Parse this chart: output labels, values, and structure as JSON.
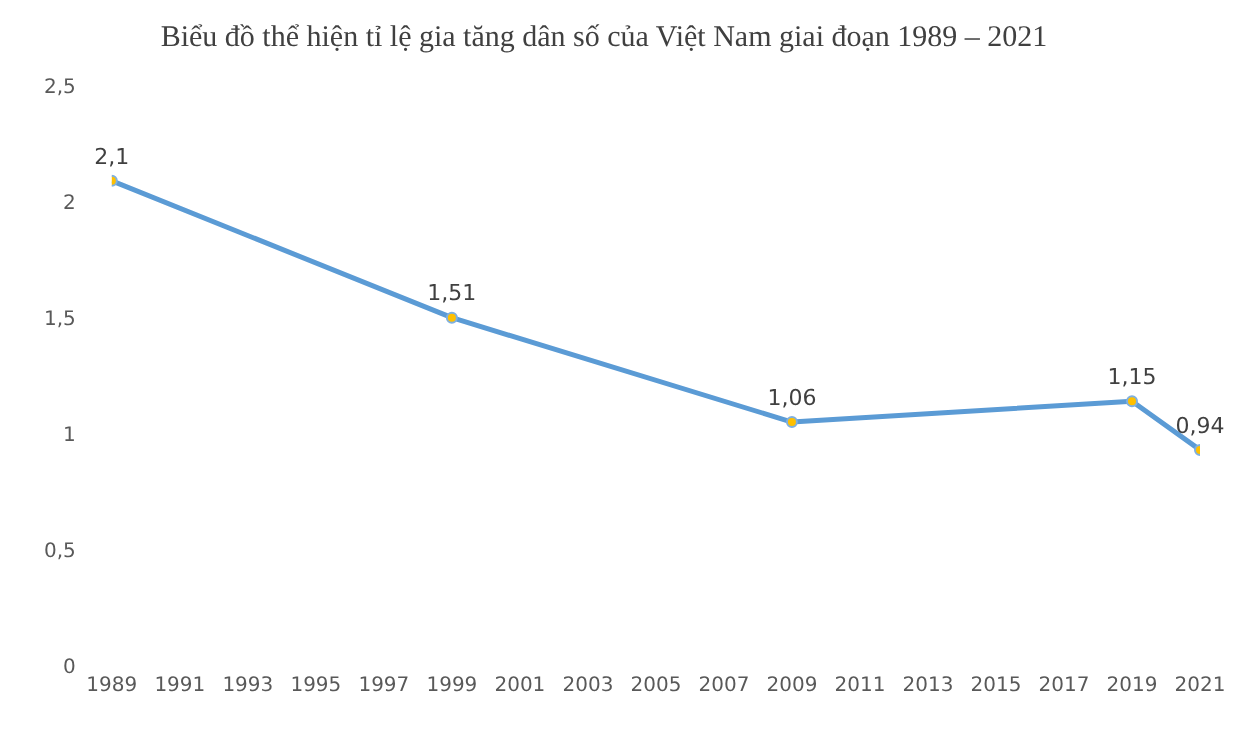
{
  "chart_data": {
    "type": "line",
    "title": "Biểu đồ thể hiện tỉ lệ gia tăng dân số của Việt Nam giai đoạn 1989 – 2021",
    "x": [
      1989,
      1999,
      2009,
      2019,
      2021
    ],
    "series": [
      {
        "color": "#5b9bd5",
        "values": [
          2.1,
          1.51,
          1.06,
          1.15,
          0.94
        ],
        "value_labels": [
          "2,1",
          "1,51",
          "1,06",
          "1,15",
          "0,94"
        ]
      }
    ],
    "xlim": [
      1989,
      2021
    ],
    "xticks": [
      1989,
      1991,
      1993,
      1995,
      1997,
      1999,
      2001,
      2003,
      2005,
      2007,
      2009,
      2011,
      2013,
      2015,
      2017,
      2019,
      2021
    ],
    "ylim": [
      0,
      2.5
    ],
    "yticks": [
      0,
      {
        "value": 0.5,
        "label": "0,5"
      },
      1,
      {
        "value": 1.5,
        "label": "1,5"
      },
      2,
      {
        "value": 2.5,
        "label": "2,5"
      }
    ],
    "grid": false,
    "legend": false,
    "marker": "circle",
    "line_style": "solid"
  }
}
